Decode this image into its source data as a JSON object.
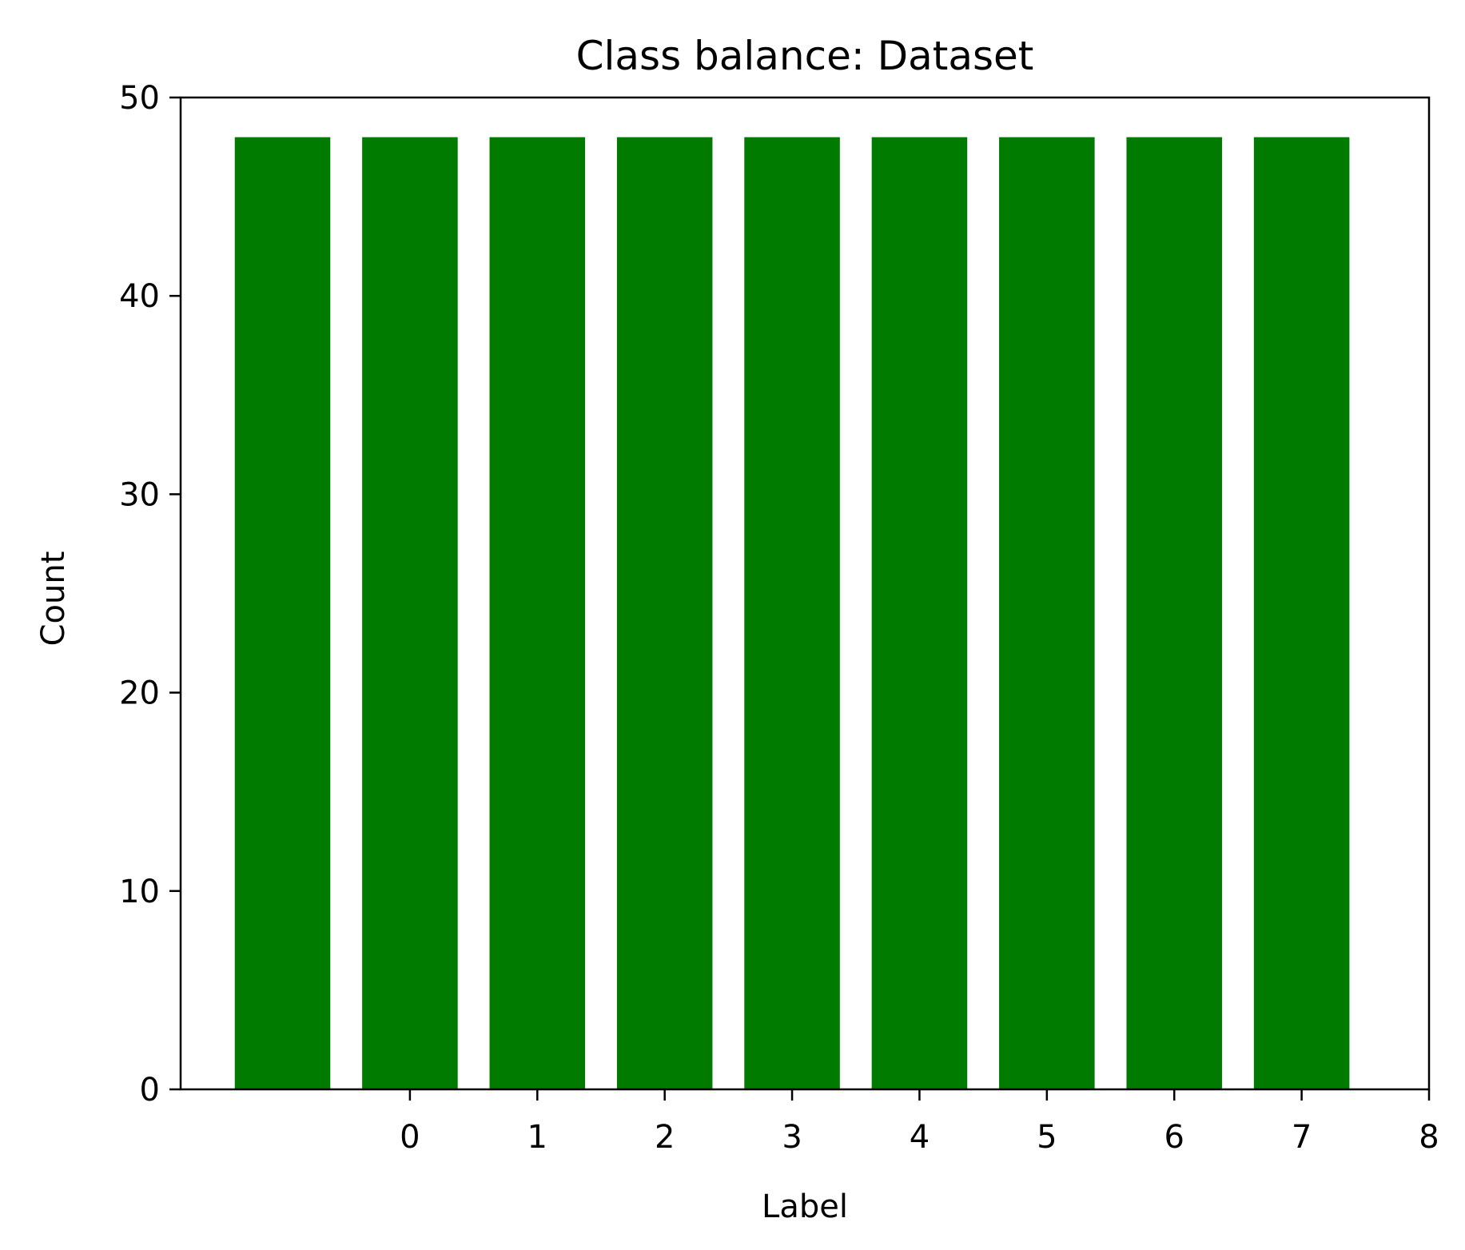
{
  "chart_data": {
    "type": "bar",
    "title": "Class balance: Dataset",
    "xlabel": "Label",
    "ylabel": "Count",
    "bars": [
      {
        "x": -1,
        "value": 48
      },
      {
        "x": 0,
        "value": 48
      },
      {
        "x": 1,
        "value": 48
      },
      {
        "x": 2,
        "value": 48
      },
      {
        "x": 3,
        "value": 48
      },
      {
        "x": 4,
        "value": 48
      },
      {
        "x": 5,
        "value": 48
      },
      {
        "x": 6,
        "value": 48
      },
      {
        "x": 7,
        "value": 48
      }
    ],
    "bar_width": 0.75,
    "xlim": [
      -1.8,
      8
    ],
    "ylim": [
      0,
      50
    ],
    "xticks": [
      "0",
      "1",
      "2",
      "3",
      "4",
      "5",
      "6",
      "7",
      "8"
    ],
    "yticks": [
      "0",
      "10",
      "20",
      "30",
      "40",
      "50"
    ],
    "grid": false,
    "legend": "none",
    "colors": {
      "bar": "#007b00",
      "axis": "#000000",
      "background": "#ffffff"
    }
  }
}
